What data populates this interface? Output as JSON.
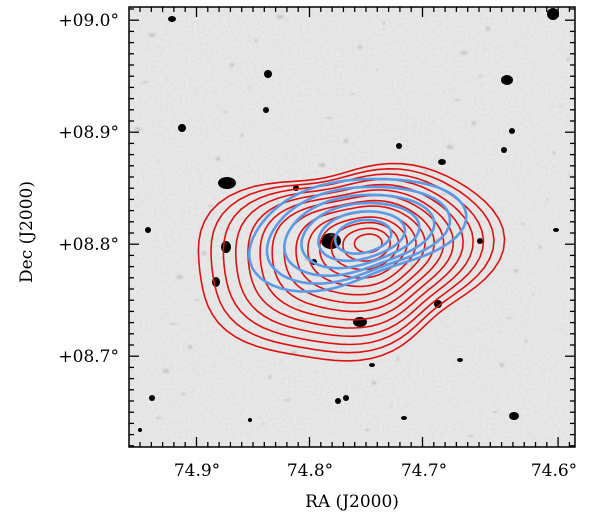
{
  "figure": {
    "x_axis": {
      "label": "RA (J2000)",
      "ticks": [
        {
          "value": 74.9,
          "text": "74.9°"
        },
        {
          "value": 74.8,
          "text": "74.8°"
        },
        {
          "value": 74.7,
          "text": "74.7°"
        },
        {
          "value": 74.6,
          "text": "74.6°"
        }
      ]
    },
    "y_axis": {
      "label": "Dec (J2000)",
      "ticks": [
        {
          "value": 9.0,
          "text": "+09.0°"
        },
        {
          "value": 8.9,
          "text": "+08.9°"
        },
        {
          "value": 8.8,
          "text": "+08.8°"
        },
        {
          "value": 8.7,
          "text": "+08.7°"
        }
      ]
    },
    "colors": {
      "red_contours": "#dd1111",
      "blue_contours": "#5b9ae6",
      "background": "#ececec",
      "stars": "#000000"
    }
  }
}
